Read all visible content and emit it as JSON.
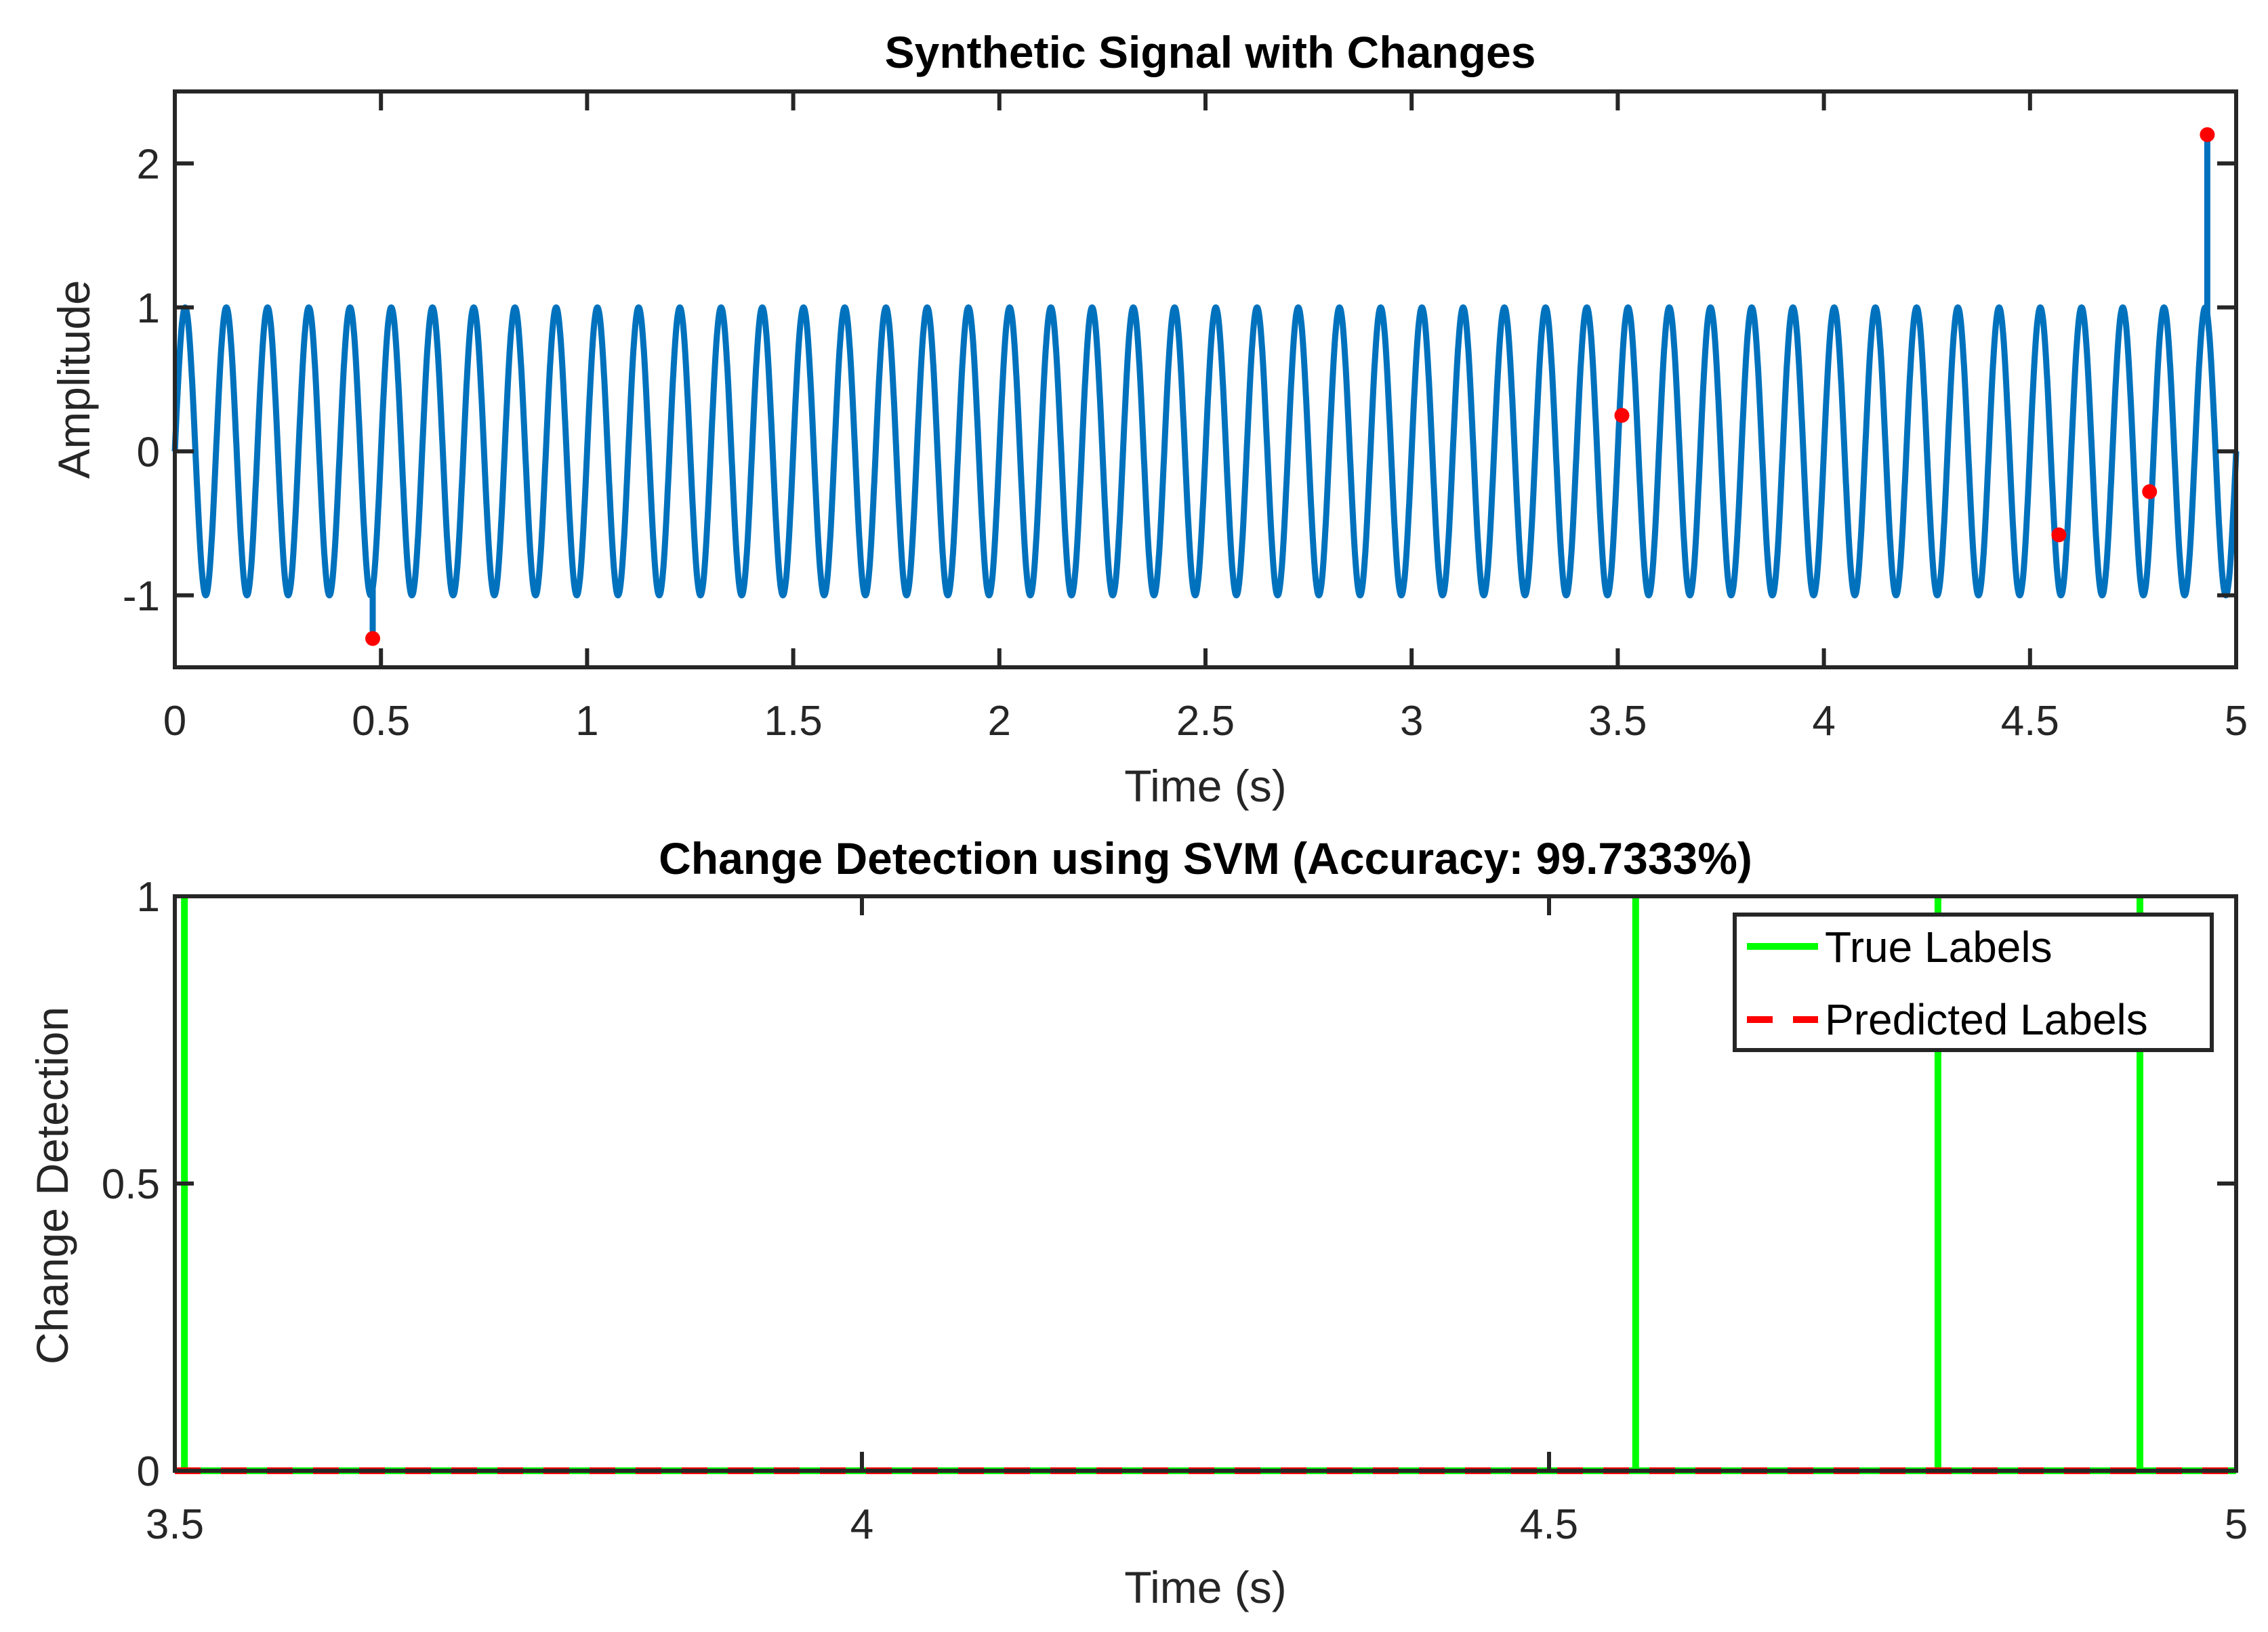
{
  "chart_data": [
    {
      "type": "line",
      "title": "Synthetic Signal with Changes",
      "xlabel": "Time (s)",
      "ylabel": "Amplitude",
      "xlim": [
        0,
        5
      ],
      "ylim": [
        -1.5,
        2.5
      ],
      "xticks": [
        0,
        0.5,
        1,
        1.5,
        2,
        2.5,
        3,
        3.5,
        4,
        4.5,
        5
      ],
      "xtick_labels": [
        "0",
        "0.5",
        "1",
        "1.5",
        "2",
        "2.5",
        "3",
        "3.5",
        "4",
        "4.5",
        "5"
      ],
      "yticks": [
        -1,
        0,
        1,
        2
      ],
      "ytick_labels": [
        "-1",
        "0",
        "1",
        "2"
      ],
      "signal": {
        "name": "signal",
        "function": "sin(2*pi*f*t)",
        "frequency_hz": 10,
        "amplitude": 1,
        "color": "#0072BD"
      },
      "change_points": {
        "color": "#FF0000",
        "points": [
          {
            "x": 0.48,
            "y": -1.3
          },
          {
            "x": 3.51,
            "y": 0.25
          },
          {
            "x": 4.57,
            "y": -0.58
          },
          {
            "x": 4.79,
            "y": -0.28
          },
          {
            "x": 4.93,
            "y": 2.2
          }
        ]
      },
      "grid": false
    },
    {
      "type": "line",
      "title": "Change Detection using SVM (Accuracy: 99.7333%)",
      "xlabel": "Time (s)",
      "ylabel": "Change Detection",
      "xlim": [
        3.5,
        5
      ],
      "ylim": [
        0,
        1
      ],
      "xticks": [
        3.5,
        4,
        4.5,
        5
      ],
      "xtick_labels": [
        "3.5",
        "4",
        "4.5",
        "5"
      ],
      "yticks": [
        0,
        0.5,
        1
      ],
      "ytick_labels": [
        "0",
        "0.5",
        "1"
      ],
      "series": [
        {
          "name": "True Labels",
          "color": "#00FF00",
          "style": "solid",
          "baseline": 0,
          "spikes": [
            {
              "x": 3.507,
              "y": 1
            },
            {
              "x": 4.563,
              "y": 1
            },
            {
              "x": 4.783,
              "y": 1
            },
            {
              "x": 4.93,
              "y": 1
            }
          ]
        },
        {
          "name": "Predicted Labels",
          "color": "#FF0000",
          "style": "dashed",
          "baseline": 0,
          "spikes": []
        }
      ],
      "legend": {
        "location": "top-right",
        "entries": [
          "True Labels",
          "Predicted Labels"
        ]
      },
      "grid": false
    }
  ]
}
